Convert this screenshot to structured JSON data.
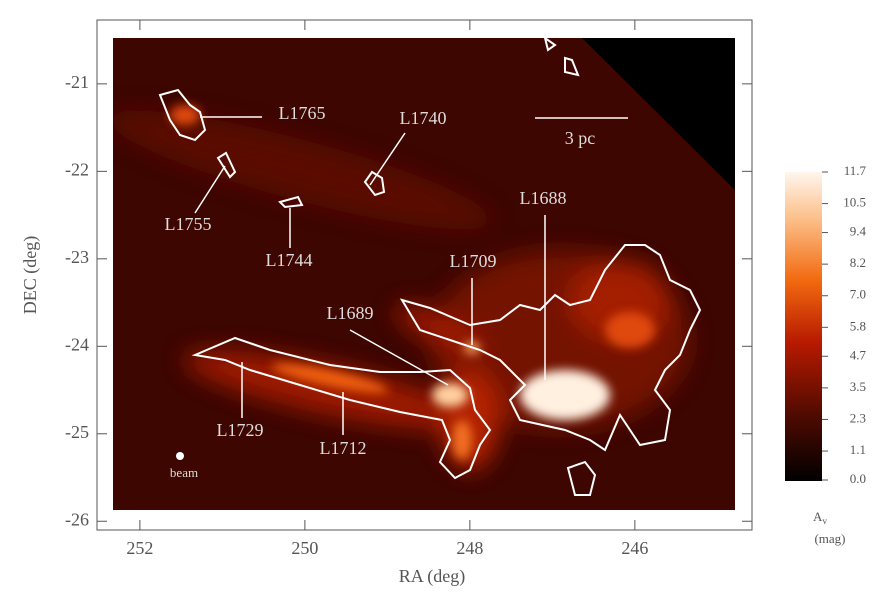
{
  "chart_data": {
    "type": "heatmap",
    "xlabel": "RA (deg)",
    "ylabel": "DEC (deg)",
    "xlim": [
      252.52,
      244.58
    ],
    "xticks": [
      252,
      250,
      248,
      246
    ],
    "ylim": [
      -26.1,
      -20.27
    ],
    "yticks": [
      -21,
      -22,
      -23,
      -24,
      -25,
      -26
    ],
    "colorbar": {
      "label": "A",
      "label_sub": "v",
      "unit": "(mag)",
      "clim": [
        0,
        11.7
      ],
      "ticks": [
        {
          "value": 0,
          "label": "0.0"
        },
        1.1,
        2.3,
        3.5,
        4.7,
        5.8,
        {
          "value": 7,
          "label": "7.0"
        },
        8.2,
        9.4,
        10.5,
        11.7
      ]
    },
    "annotations": [
      "L1765",
      "L1740",
      "L1755",
      "L1744",
      "L1709",
      "L1688",
      "L1689",
      "L1729",
      "L1712",
      "3 pc",
      "beam"
    ]
  }
}
